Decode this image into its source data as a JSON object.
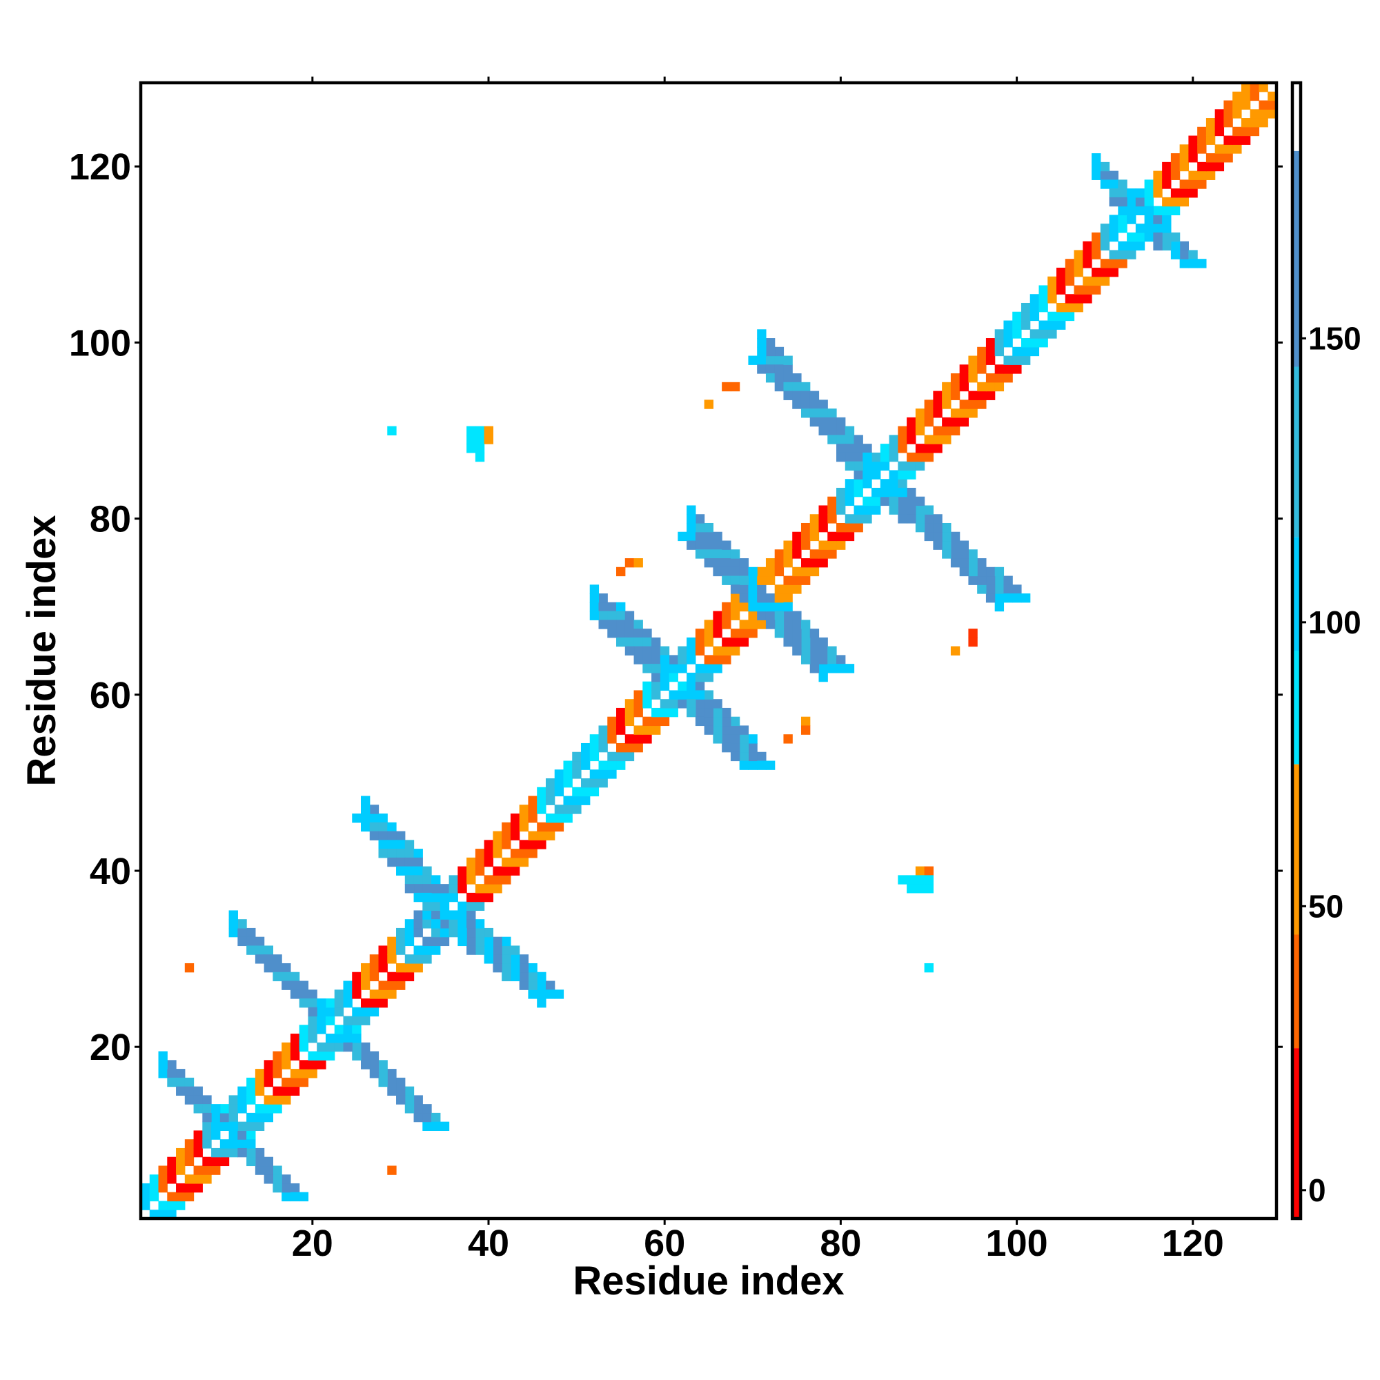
{
  "chart_data": {
    "type": "heatmap",
    "title": "",
    "xlabel": "Residue index",
    "ylabel": "Residue index",
    "xlim": [
      0.5,
      129.5
    ],
    "ylim": [
      0.5,
      129.5
    ],
    "x_ticks": [
      20,
      40,
      60,
      80,
      100,
      120
    ],
    "y_ticks": [
      20,
      40,
      60,
      80,
      100,
      120
    ],
    "colorbar": {
      "range": [
        -5,
        195
      ],
      "ticks": [
        0,
        50,
        100,
        150
      ],
      "bands": [
        {
          "from": -5,
          "to": 25,
          "color": "#ff0000"
        },
        {
          "from": 25,
          "to": 45,
          "color": "#ff6600"
        },
        {
          "from": 45,
          "to": 75,
          "color": "#ff9900"
        },
        {
          "from": 75,
          "to": 95,
          "color": "#00e5ff"
        },
        {
          "from": 95,
          "to": 115,
          "color": "#00ccff"
        },
        {
          "from": 115,
          "to": 145,
          "color": "#33bbdd"
        },
        {
          "from": 145,
          "to": 183,
          "color": "#4f8fcb"
        },
        {
          "from": 183,
          "to": 195,
          "color": "#ffffff"
        }
      ]
    },
    "diagonal_bands": [
      {
        "from": 1,
        "to": 3,
        "color": "#00e5ff"
      },
      {
        "from": 3,
        "to": 8,
        "color": "#ff6600"
      },
      {
        "from": 8,
        "to": 14,
        "color": "#00ccff"
      },
      {
        "from": 14,
        "to": 19,
        "color": "#ff3300"
      },
      {
        "from": 19,
        "to": 25,
        "color": "#00ccff"
      },
      {
        "from": 25,
        "to": 30,
        "color": "#ff6600"
      },
      {
        "from": 30,
        "to": 37,
        "color": "#33bbdd"
      },
      {
        "from": 37,
        "to": 46,
        "color": "#ff6600"
      },
      {
        "from": 46,
        "to": 54,
        "color": "#00ccff"
      },
      {
        "from": 54,
        "to": 58,
        "color": "#ff6600"
      },
      {
        "from": 58,
        "to": 64,
        "color": "#00ccff"
      },
      {
        "from": 64,
        "to": 69,
        "color": "#ff3300"
      },
      {
        "from": 69,
        "to": 73,
        "color": "#ff9900"
      },
      {
        "from": 73,
        "to": 80,
        "color": "#ff3300"
      },
      {
        "from": 80,
        "to": 87,
        "color": "#00ccff"
      },
      {
        "from": 87,
        "to": 98,
        "color": "#ff6600"
      },
      {
        "from": 98,
        "to": 104,
        "color": "#00ccff"
      },
      {
        "from": 104,
        "to": 110,
        "color": "#ff3300"
      },
      {
        "from": 110,
        "to": 116,
        "color": "#00ccff"
      },
      {
        "from": 116,
        "to": 124,
        "color": "#ff3300"
      },
      {
        "from": 124,
        "to": 130,
        "color": "#ff9900"
      }
    ],
    "strips": [
      {
        "x1": 3,
        "y1": 17,
        "x2": 9,
        "y2": 11,
        "w": 3,
        "color": "#4f8fcb"
      },
      {
        "x1": 11,
        "y1": 9,
        "x2": 17,
        "y2": 3,
        "w": 3,
        "color": "#4f8fcb"
      },
      {
        "x1": 11,
        "y1": 33,
        "x2": 20,
        "y2": 24,
        "w": 3,
        "color": "#4f8fcb"
      },
      {
        "x1": 23,
        "y1": 21,
        "x2": 33,
        "y2": 11,
        "w": 3,
        "color": "#4f8fcb"
      },
      {
        "x1": 25,
        "y1": 46,
        "x2": 33,
        "y2": 37,
        "w": 4,
        "color": "#33bbdd"
      },
      {
        "x1": 33,
        "y1": 35,
        "x2": 45,
        "y2": 26,
        "w": 4,
        "color": "#33bbdd"
      },
      {
        "x1": 52,
        "y1": 70,
        "x2": 59,
        "y2": 63,
        "w": 4,
        "color": "#4f8fcb"
      },
      {
        "x1": 61,
        "y1": 60,
        "x2": 69,
        "y2": 52,
        "w": 4,
        "color": "#4f8fcb"
      },
      {
        "x1": 62,
        "y1": 78,
        "x2": 70,
        "y2": 70,
        "w": 4,
        "color": "#4f8fcb"
      },
      {
        "x1": 71,
        "y1": 70,
        "x2": 78,
        "y2": 63,
        "w": 4,
        "color": "#4f8fcb"
      },
      {
        "x1": 70,
        "y1": 98,
        "x2": 82,
        "y2": 86,
        "w": 4,
        "color": "#4f8fcb"
      },
      {
        "x1": 84,
        "y1": 83,
        "x2": 98,
        "y2": 71,
        "w": 4,
        "color": "#4f8fcb"
      },
      {
        "x1": 109,
        "y1": 119,
        "x2": 113,
        "y2": 115,
        "w": 3,
        "color": "#33bbdd"
      },
      {
        "x1": 114,
        "y1": 113,
        "x2": 119,
        "y2": 109,
        "w": 3,
        "color": "#33bbdd"
      }
    ],
    "points": [
      {
        "x": 29,
        "y": 90,
        "color": "#00e5ff"
      },
      {
        "x": 38,
        "y": 90,
        "color": "#00e5ff"
      },
      {
        "x": 39,
        "y": 90,
        "color": "#00e5ff"
      },
      {
        "x": 40,
        "y": 90,
        "color": "#ff9900"
      },
      {
        "x": 38,
        "y": 89,
        "color": "#00e5ff"
      },
      {
        "x": 39,
        "y": 89,
        "color": "#00e5ff"
      },
      {
        "x": 40,
        "y": 89,
        "color": "#ff9900"
      },
      {
        "x": 38,
        "y": 88,
        "color": "#00e5ff"
      },
      {
        "x": 39,
        "y": 88,
        "color": "#00e5ff"
      },
      {
        "x": 39,
        "y": 87,
        "color": "#00e5ff"
      },
      {
        "x": 67,
        "y": 95,
        "color": "#ff6600"
      },
      {
        "x": 68,
        "y": 95,
        "color": "#ff6600"
      },
      {
        "x": 65,
        "y": 93,
        "color": "#ff9900"
      },
      {
        "x": 56,
        "y": 75,
        "color": "#ff6600"
      },
      {
        "x": 57,
        "y": 75,
        "color": "#ff9900"
      },
      {
        "x": 55,
        "y": 74,
        "color": "#ff6600"
      },
      {
        "x": 95,
        "y": 67,
        "color": "#ff3300"
      },
      {
        "x": 95,
        "y": 66,
        "color": "#ff3300"
      },
      {
        "x": 93,
        "y": 65,
        "color": "#ff9900"
      },
      {
        "x": 76,
        "y": 57,
        "color": "#ff9900"
      },
      {
        "x": 76,
        "y": 56,
        "color": "#ff6600"
      },
      {
        "x": 74,
        "y": 55,
        "color": "#ff6600"
      },
      {
        "x": 89,
        "y": 40,
        "color": "#ff9900"
      },
      {
        "x": 90,
        "y": 40,
        "color": "#ff6600"
      },
      {
        "x": 87,
        "y": 39,
        "color": "#00e5ff"
      },
      {
        "x": 88,
        "y": 39,
        "color": "#00e5ff"
      },
      {
        "x": 89,
        "y": 39,
        "color": "#00e5ff"
      },
      {
        "x": 90,
        "y": 39,
        "color": "#00e5ff"
      },
      {
        "x": 88,
        "y": 38,
        "color": "#00e5ff"
      },
      {
        "x": 89,
        "y": 38,
        "color": "#00e5ff"
      },
      {
        "x": 90,
        "y": 38,
        "color": "#00e5ff"
      },
      {
        "x": 90,
        "y": 29,
        "color": "#00e5ff"
      },
      {
        "x": 6,
        "y": 29,
        "color": "#ff6600"
      },
      {
        "x": 29,
        "y": 6,
        "color": "#ff6600"
      }
    ]
  }
}
